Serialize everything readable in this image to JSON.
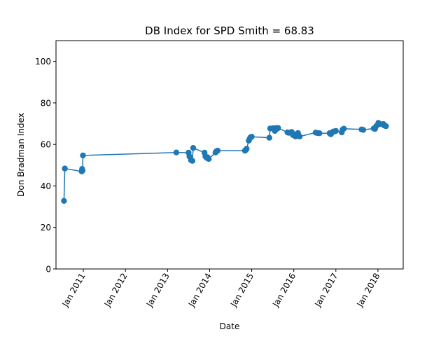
{
  "chart_data": {
    "type": "line",
    "title": "DB Index for SPD Smith = 68.83",
    "xlabel": "Date",
    "ylabel": "Don Bradman Index",
    "xlim": [
      2010.35,
      2018.6
    ],
    "ylim": [
      0,
      110
    ],
    "yticks": [
      0,
      20,
      40,
      60,
      80,
      100
    ],
    "xticks": [
      {
        "value": 2011.0,
        "label": "Jan 2011"
      },
      {
        "value": 2012.0,
        "label": "Jan 2012"
      },
      {
        "value": 2013.0,
        "label": "Jan 2013"
      },
      {
        "value": 2014.0,
        "label": "Jan 2014"
      },
      {
        "value": 2015.0,
        "label": "Jan 2015"
      },
      {
        "value": 2016.0,
        "label": "Jan 2016"
      },
      {
        "value": 2017.0,
        "label": "Jan 2017"
      },
      {
        "value": 2018.0,
        "label": "Jan 2018"
      }
    ],
    "grid": false,
    "color": "#1f77b4",
    "series": [
      {
        "name": "DB Index",
        "x": [
          2010.54,
          2010.56,
          2010.96,
          2010.97,
          2010.98,
          2010.99,
          2013.21,
          2013.5,
          2013.52,
          2013.56,
          2013.59,
          2013.61,
          2013.88,
          2013.9,
          2013.93,
          2013.95,
          2013.98,
          2014.14,
          2014.16,
          2014.19,
          2014.84,
          2014.86,
          2014.88,
          2014.93,
          2014.95,
          2014.97,
          2015.0,
          2015.42,
          2015.44,
          2015.51,
          2015.55,
          2015.58,
          2015.6,
          2015.63,
          2015.85,
          2015.88,
          2015.95,
          2015.98,
          2016.0,
          2016.04,
          2016.06,
          2016.1,
          2016.12,
          2016.14,
          2016.52,
          2016.56,
          2016.61,
          2016.85,
          2016.88,
          2016.9,
          2016.94,
          2016.98,
          2017.0,
          2017.14,
          2017.16,
          2017.19,
          2017.61,
          2017.65,
          2017.9,
          2017.93,
          2017.96,
          2018.01,
          2018.05,
          2018.13,
          2018.15,
          2018.19
        ],
        "y": [
          32.8,
          48.4,
          47.0,
          48.2,
          47.4,
          54.7,
          56.1,
          56.0,
          54.2,
          52.4,
          52.1,
          58.3,
          56.0,
          54.3,
          53.5,
          53.8,
          53.0,
          56.1,
          56.7,
          57.0,
          57.0,
          57.3,
          57.9,
          61.8,
          62.7,
          63.4,
          63.7,
          63.2,
          67.7,
          67.8,
          66.5,
          67.9,
          67.5,
          67.9,
          65.8,
          65.6,
          66.0,
          64.5,
          64.9,
          63.8,
          64.8,
          65.5,
          64.3,
          63.8,
          65.7,
          65.5,
          65.4,
          65.4,
          64.9,
          65.6,
          66.2,
          66.3,
          66.5,
          65.8,
          67.1,
          67.6,
          67.2,
          67.0,
          67.7,
          67.5,
          68.8,
          70.4,
          69.8,
          69.8,
          69.1,
          68.8
        ]
      }
    ]
  }
}
